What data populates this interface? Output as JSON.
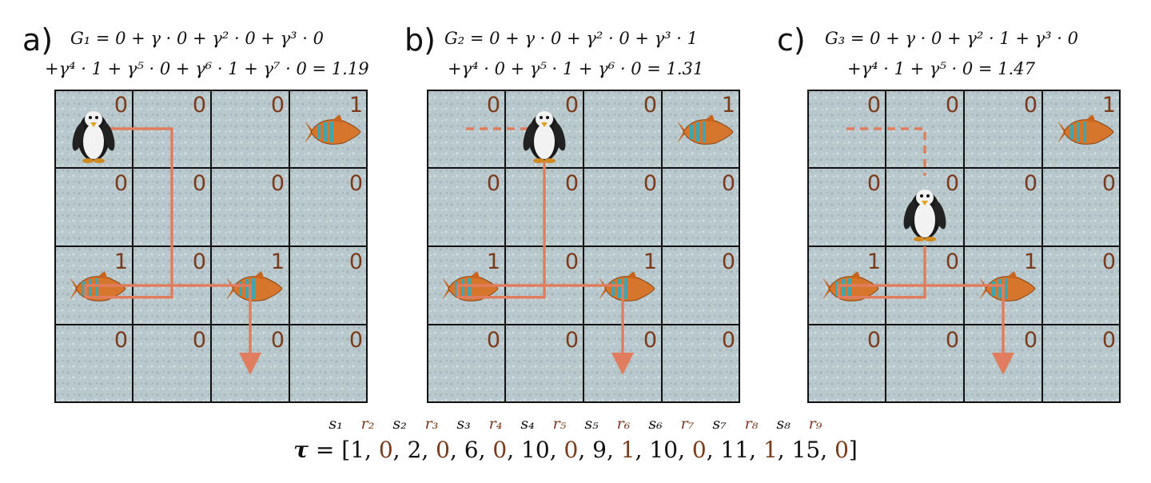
{
  "colors": {
    "reward_text": "#7a3a1c",
    "path": "#e07d5e",
    "grid_line": "#111111",
    "ice": "#b9c8cc"
  },
  "panels": [
    {
      "letter": "a)",
      "formula_line1": "G₁ = 0 + γ · 0 + γ² · 0 + γ³ · 0",
      "formula_line2": "+γ⁴ · 1 + γ⁵ · 0 + γ⁶ · 1 + γ⁷ · 0 = 1.19",
      "rewards": [
        "0",
        "0",
        "0",
        "1",
        "0",
        "0",
        "0",
        "0",
        "1",
        "0",
        "1",
        "0",
        "0",
        "0",
        "0",
        "0"
      ],
      "penguin_cell": 0,
      "fish_cells": [
        3,
        8,
        10
      ],
      "path_icon": "path-arrow"
    },
    {
      "letter": "b)",
      "formula_line1": "G₂ = 0 + γ · 0 + γ² · 0 + γ³ · 1",
      "formula_line2": "+γ⁴ · 0 + γ⁵ · 1 + γ⁶ · 0 = 1.31",
      "rewards": [
        "0",
        "0",
        "0",
        "1",
        "0",
        "0",
        "0",
        "0",
        "1",
        "0",
        "1",
        "0",
        "0",
        "0",
        "0",
        "0"
      ],
      "penguin_cell": 1,
      "fish_cells": [
        3,
        8,
        10
      ],
      "path_icon": "path-arrow"
    },
    {
      "letter": "c)",
      "formula_line1": "G₃ = 0 + γ · 0 + γ² · 1 + γ³ · 0",
      "formula_line2": "+γ⁴ · 1 + γ⁵ · 0 = 1.47",
      "rewards": [
        "0",
        "0",
        "0",
        "1",
        "0",
        "0",
        "0",
        "0",
        "1",
        "0",
        "1",
        "0",
        "0",
        "0",
        "0",
        "0"
      ],
      "penguin_cell": 5,
      "fish_cells": [
        3,
        8,
        10
      ],
      "path_icon": "path-arrow"
    }
  ],
  "sequence": {
    "labels": [
      {
        "text": "s₁",
        "kind": "s"
      },
      {
        "text": "r₂",
        "kind": "r"
      },
      {
        "text": "s₂",
        "kind": "s"
      },
      {
        "text": "r₃",
        "kind": "r"
      },
      {
        "text": "s₃",
        "kind": "s"
      },
      {
        "text": "r₄",
        "kind": "r"
      },
      {
        "text": "s₄",
        "kind": "s"
      },
      {
        "text": "r₅",
        "kind": "r"
      },
      {
        "text": "s₅",
        "kind": "s"
      },
      {
        "text": "r₆",
        "kind": "r"
      },
      {
        "text": "s₆",
        "kind": "s"
      },
      {
        "text": "r₇",
        "kind": "r"
      },
      {
        "text": "s₇",
        "kind": "s"
      },
      {
        "text": "r₈",
        "kind": "r"
      },
      {
        "text": "s₈",
        "kind": "s"
      },
      {
        "text": "r₉",
        "kind": "r"
      }
    ],
    "tau_symbol": "τ",
    "tau_prefix": " = [",
    "tau_suffix": "]",
    "values": [
      {
        "v": "1",
        "kind": "s"
      },
      {
        "v": "0",
        "kind": "r"
      },
      {
        "v": "2",
        "kind": "s"
      },
      {
        "v": "0",
        "kind": "r"
      },
      {
        "v": "6",
        "kind": "s"
      },
      {
        "v": "0",
        "kind": "r"
      },
      {
        "v": "10",
        "kind": "s"
      },
      {
        "v": "0",
        "kind": "r"
      },
      {
        "v": "9",
        "kind": "s"
      },
      {
        "v": "1",
        "kind": "r"
      },
      {
        "v": "10",
        "kind": "s"
      },
      {
        "v": "0",
        "kind": "r"
      },
      {
        "v": "11",
        "kind": "s"
      },
      {
        "v": "1",
        "kind": "r"
      },
      {
        "v": "15",
        "kind": "s"
      },
      {
        "v": "0",
        "kind": "r"
      }
    ]
  }
}
